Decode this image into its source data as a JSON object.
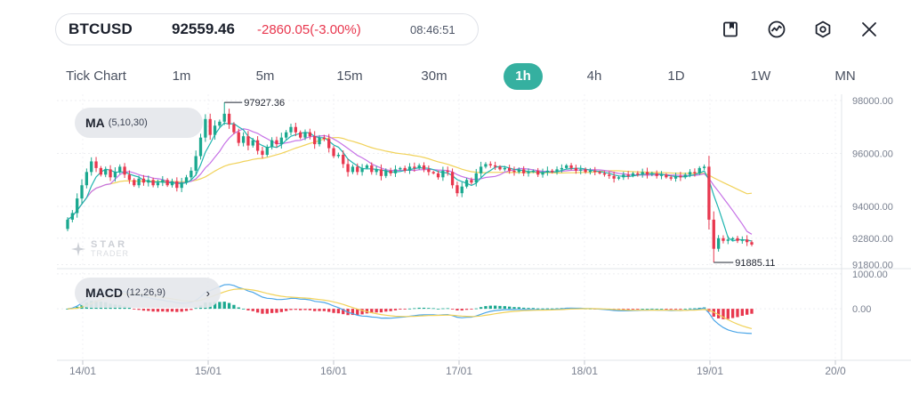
{
  "ticker": {
    "symbol": "BTCUSD",
    "price": "92559.46",
    "change": "-2860.05(-3.00%)",
    "time": "08:46:51"
  },
  "toolbar": {
    "icons": [
      "bookmark-icon",
      "indicator-icon",
      "settings-icon",
      "close-icon"
    ]
  },
  "timeframes": {
    "items": [
      "Tick Chart",
      "1m",
      "5m",
      "15m",
      "30m",
      "1h",
      "4h",
      "1D",
      "1W",
      "MN"
    ],
    "active": "1h"
  },
  "indicators": {
    "ma": {
      "label": "MA",
      "params": "(5,10,30)"
    },
    "macd": {
      "label": "MACD",
      "params": "(12,26,9)"
    }
  },
  "watermark": {
    "line1": "STAR",
    "line2": "TRADER"
  },
  "colors": {
    "bull": "#1aa88f",
    "bear": "#e8374e",
    "ma5": "#1fb5b0",
    "ma10": "#c672e6",
    "ma30": "#f1d25a",
    "macd_line": "#4ca6e8",
    "signal_line": "#f1d25a",
    "active_tab": "#35b0a0"
  },
  "chart_data": {
    "type": "candlestick",
    "price_axis": [
      "98000.00",
      "96000.00",
      "94000.00",
      "92800.00",
      "91800.00"
    ],
    "price_range": [
      91650,
      98100
    ],
    "high_label": "97927.36",
    "low_label": "91885.11",
    "macd_axis": [
      "1000.00",
      "0.00"
    ],
    "macd_range": [
      -1400,
      1100
    ],
    "x_labels": [
      "14/01",
      "15/01",
      "16/01",
      "17/01",
      "18/01",
      "19/01",
      "20/0"
    ],
    "closes": [
      93500,
      93750,
      94300,
      94800,
      95300,
      95700,
      95450,
      95200,
      95400,
      95100,
      95300,
      95500,
      95200,
      95000,
      94800,
      95050,
      94900,
      95000,
      94800,
      94900,
      95000,
      94800,
      94950,
      94700,
      94900,
      95100,
      95350,
      95900,
      96600,
      97300,
      96700,
      97050,
      97200,
      97500,
      97100,
      96800,
      96400,
      96650,
      96300,
      96500,
      96100,
      95950,
      96250,
      96500,
      96350,
      96600,
      96800,
      97000,
      96800,
      96600,
      96800,
      96650,
      96350,
      96600,
      96550,
      96200,
      95900,
      95950,
      95600,
      95300,
      95500,
      95300,
      95450,
      95550,
      95300,
      95400,
      95150,
      95350,
      95250,
      95400,
      95450,
      95350,
      95500,
      95450,
      95550,
      95400,
      95300,
      95250,
      95100,
      95350,
      95300,
      94800,
      94500,
      94750,
      95000,
      94900,
      95250,
      95500,
      95600,
      95550,
      95500,
      95400,
      95450,
      95350,
      95300,
      95400,
      95250,
      95300,
      95350,
      95200,
      95300,
      95350,
      95300,
      95400,
      95450,
      95550,
      95450,
      95350,
      95400,
      95300,
      95350,
      95300,
      95250,
      95200,
      95150,
      95050,
      95100,
      95200,
      95150,
      95250,
      95200,
      95300,
      95200,
      95250,
      95150,
      95200,
      95100,
      95050,
      95150,
      95100,
      95200,
      95300,
      95250,
      95450,
      95500,
      93500,
      92400,
      92800,
      92700,
      92750,
      92800,
      92700,
      92750,
      92650,
      92560
    ],
    "ma30_end": 94500,
    "ma10_end": 92950
  }
}
